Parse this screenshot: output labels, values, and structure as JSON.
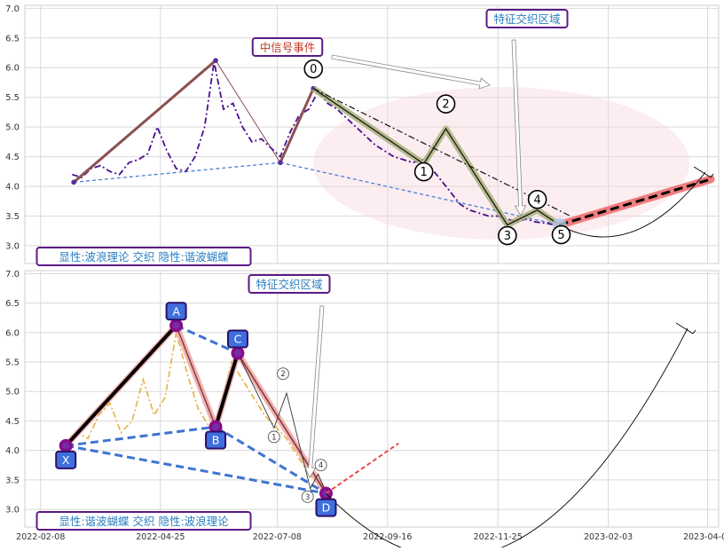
{
  "chart_data": [
    {
      "type": "line",
      "panel": "top",
      "ylim": [
        2.7,
        7.05
      ],
      "yticks": [
        3.0,
        3.5,
        4.0,
        4.5,
        5.0,
        5.5,
        6.0,
        6.5,
        7.0
      ],
      "ytick_labels": [
        "3.0",
        "3.5",
        "4.0",
        "4.5",
        "5.0",
        "5.5",
        "6.0",
        "6.5",
        "7.0"
      ],
      "grid": true,
      "annotations": {
        "region_label": "特征交织区域",
        "event_label": "中信号事件",
        "legend_label": "显性:波浪理论 交织 隐性:谐波蝴蝶"
      },
      "wave_points": [
        {
          "label": "0",
          "x": "2022-07-31",
          "y": 5.65
        },
        {
          "label": "1",
          "x": "2022-10-09",
          "y": 4.38
        },
        {
          "label": "2",
          "x": "2022-10-23",
          "y": 4.97
        },
        {
          "label": "3",
          "x": "2022-12-01",
          "y": 3.35
        },
        {
          "label": "4",
          "x": "2022-12-20",
          "y": 3.6
        },
        {
          "label": "5",
          "x": "2023-01-03",
          "y": 3.35
        }
      ],
      "harmonic_points": [
        {
          "x": "2022-03-01",
          "y": 4.07
        },
        {
          "x": "2022-05-30",
          "y": 6.12
        },
        {
          "x": "2022-07-10",
          "y": 4.4
        },
        {
          "x": "2022-07-31",
          "y": 5.65
        },
        {
          "x": "2023-01-03",
          "y": 3.35
        }
      ],
      "projection": {
        "start": {
          "x": "2023-01-03",
          "y": 3.35
        },
        "end": {
          "x": "2023-04-09",
          "y": 4.12
        }
      },
      "price_series": {
        "name": "",
        "x": [
          "2022-02-28",
          "2022-03-06",
          "2022-03-12",
          "2022-03-18",
          "2022-03-24",
          "2022-03-30",
          "2022-04-05",
          "2022-04-11",
          "2022-04-17",
          "2022-04-23",
          "2022-04-29",
          "2022-05-05",
          "2022-05-11",
          "2022-05-17",
          "2022-05-23",
          "2022-05-29",
          "2022-06-04",
          "2022-06-10",
          "2022-06-16",
          "2022-06-22",
          "2022-06-28",
          "2022-07-04",
          "2022-07-10",
          "2022-07-16",
          "2022-07-22",
          "2022-07-28",
          "2022-08-03",
          "2022-08-09",
          "2022-08-15",
          "2022-08-21",
          "2022-08-27",
          "2022-09-02",
          "2022-09-08",
          "2022-09-14",
          "2022-09-20",
          "2022-09-26",
          "2022-10-02",
          "2022-10-08",
          "2022-10-14",
          "2022-10-20",
          "2022-10-26",
          "2022-11-01",
          "2022-11-07",
          "2022-11-13",
          "2022-11-19",
          "2022-11-25",
          "2022-12-01",
          "2022-12-07",
          "2022-12-13",
          "2022-12-19",
          "2022-12-25",
          "2022-12-31"
        ],
        "values": [
          4.2,
          4.15,
          4.3,
          4.35,
          4.25,
          4.2,
          4.4,
          4.45,
          4.55,
          5.0,
          4.6,
          4.3,
          4.25,
          4.5,
          5.0,
          6.1,
          5.3,
          5.4,
          5.0,
          4.75,
          4.8,
          4.65,
          4.5,
          4.9,
          5.2,
          5.3,
          5.6,
          5.4,
          5.3,
          5.15,
          5.0,
          4.85,
          4.7,
          4.6,
          4.5,
          4.45,
          4.4,
          4.45,
          4.3,
          4.1,
          3.9,
          3.7,
          3.6,
          3.55,
          3.5,
          3.5,
          3.45,
          3.4,
          3.45,
          3.4,
          3.38,
          3.35
        ]
      }
    },
    {
      "type": "line",
      "panel": "bottom",
      "ylim": [
        2.7,
        7.05
      ],
      "yticks": [
        3.0,
        3.5,
        4.0,
        4.5,
        5.0,
        5.5,
        6.0,
        6.5,
        7.0
      ],
      "ytick_labels": [
        "3.0",
        "3.5",
        "4.0",
        "4.5",
        "5.0",
        "5.5",
        "6.0",
        "6.5",
        "7.0"
      ],
      "xticks": [
        "2022-02-08",
        "2022-04-25",
        "2022-07-08",
        "2022-09-16",
        "2022-11-25",
        "2023-02-03",
        "2023-04-07"
      ],
      "xtick_labels": [
        "2022-02-08",
        "2022-04-25",
        "2022-07-08",
        "2022-09-16",
        "2022-11-25",
        "2023-02-03",
        "2023-04-07"
      ],
      "grid": true,
      "annotations": {
        "region_label": "特征交织区域",
        "legend_label": "显性:谐波蝴蝶 交织 隐性:波浪理论"
      },
      "harmonic_points": [
        {
          "label": "X",
          "x": "2022-02-24",
          "y": 4.08
        },
        {
          "label": "A",
          "x": "2022-05-05",
          "y": 6.12
        },
        {
          "label": "B",
          "x": "2022-05-30",
          "y": 4.4
        },
        {
          "label": "C",
          "x": "2022-06-13",
          "y": 5.65
        },
        {
          "label": "D",
          "x": "2022-08-08",
          "y": 3.27
        }
      ],
      "wave_points": [
        {
          "label": "1",
          "x": "2022-07-06",
          "y": 4.38
        },
        {
          "label": "2",
          "x": "2022-07-14",
          "y": 4.97
        },
        {
          "label": "3",
          "x": "2022-07-29",
          "y": 3.35
        },
        {
          "label": "4",
          "x": "2022-08-03",
          "y": 3.6
        }
      ],
      "projection": {
        "start": {
          "x": "2022-08-08",
          "y": 3.27
        },
        "end": {
          "x": "2022-09-23",
          "y": 4.12
        }
      },
      "price_series": {
        "name": "",
        "x": [
          "2022-02-24",
          "2022-03-03",
          "2022-03-10",
          "2022-03-17",
          "2022-03-24",
          "2022-03-31",
          "2022-04-07",
          "2022-04-14",
          "2022-04-21",
          "2022-04-28",
          "2022-05-05",
          "2022-05-12",
          "2022-05-19",
          "2022-05-26",
          "2022-06-02",
          "2022-06-09",
          "2022-06-16",
          "2022-06-23",
          "2022-06-30",
          "2022-07-07",
          "2022-07-14",
          "2022-07-21",
          "2022-07-28",
          "2022-08-04",
          "2022-08-08"
        ],
        "values": [
          4.1,
          4.3,
          4.2,
          4.6,
          4.8,
          4.3,
          4.5,
          5.2,
          4.6,
          4.9,
          6.0,
          5.3,
          4.7,
          4.4,
          4.7,
          5.5,
          5.2,
          4.9,
          4.6,
          4.4,
          4.2,
          3.9,
          3.6,
          3.4,
          3.3
        ]
      }
    }
  ]
}
